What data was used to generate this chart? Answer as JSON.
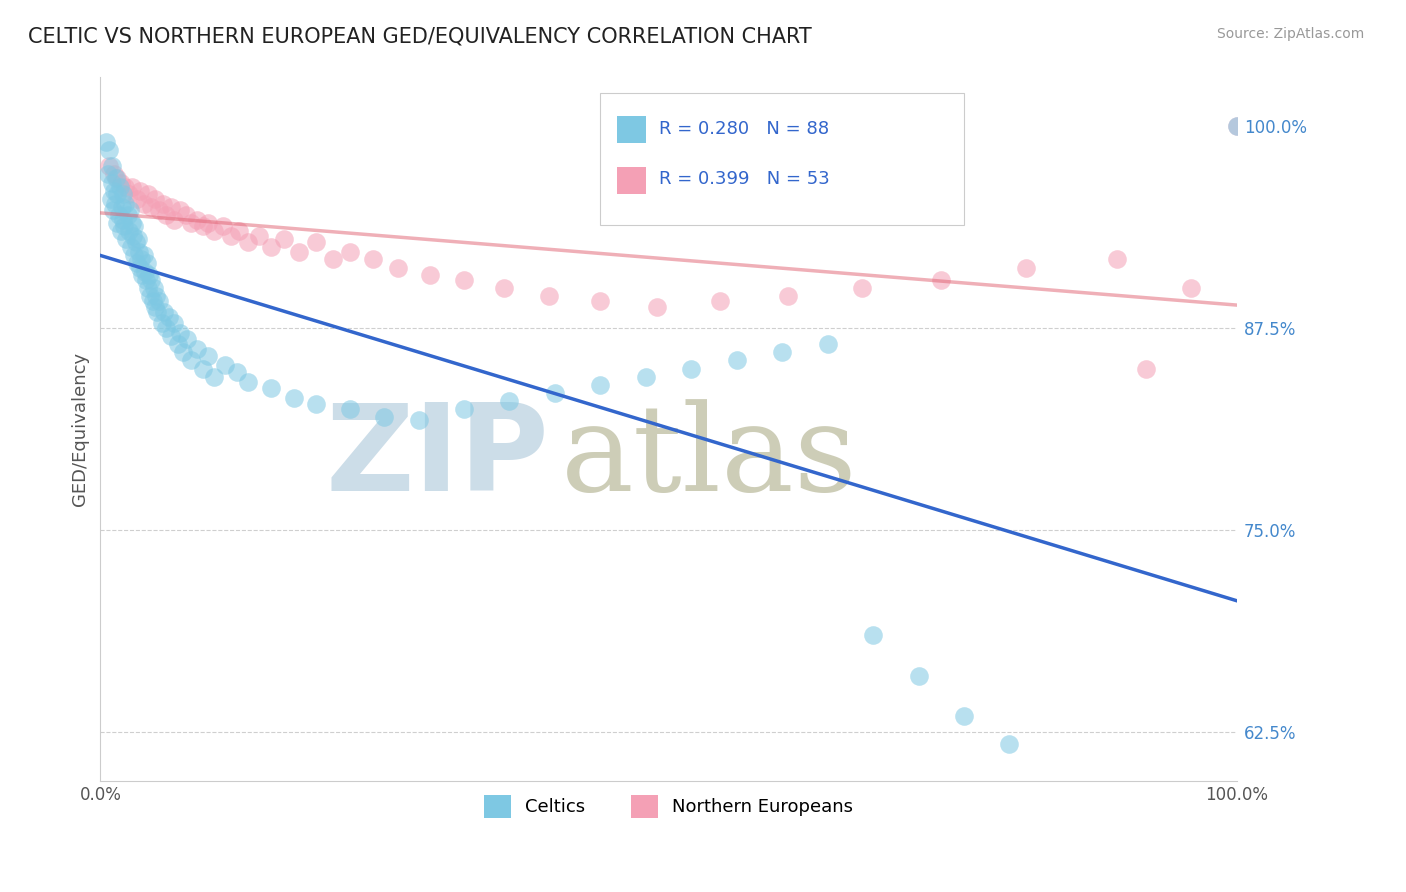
{
  "title": "CELTIC VS NORTHERN EUROPEAN GED/EQUIVALENCY CORRELATION CHART",
  "source": "Source: ZipAtlas.com",
  "ylabel": "GED/Equivalency",
  "ytick_values": [
    1.0,
    0.875,
    0.75,
    0.625
  ],
  "ytick_labels": [
    "100.0%",
    "87.5%",
    "75.0%",
    "62.5%"
  ],
  "xlim": [
    0.0,
    1.0
  ],
  "ylim": [
    0.595,
    1.03
  ],
  "celtics_R": 0.28,
  "celtics_N": 88,
  "northern_R": 0.399,
  "northern_N": 53,
  "celtic_color": "#7ec8e3",
  "celtic_edge_color": "#5aaed6",
  "northern_color": "#f4a0b5",
  "northern_edge_color": "#e888a0",
  "celtic_line_color": "#3366cc",
  "northern_line_color": "#e0607080",
  "legend_label_celtic": "Celtics",
  "legend_label_northern": "Northern Europeans",
  "zip_color": "#ccdde8",
  "atlas_color": "#c8c8b0",
  "celtics_x": [
    0.005,
    0.007,
    0.008,
    0.009,
    0.01,
    0.01,
    0.011,
    0.012,
    0.013,
    0.014,
    0.015,
    0.015,
    0.016,
    0.017,
    0.018,
    0.019,
    0.02,
    0.02,
    0.021,
    0.022,
    0.023,
    0.024,
    0.025,
    0.026,
    0.027,
    0.028,
    0.029,
    0.03,
    0.03,
    0.031,
    0.032,
    0.033,
    0.034,
    0.035,
    0.036,
    0.037,
    0.038,
    0.039,
    0.04,
    0.041,
    0.042,
    0.043,
    0.044,
    0.045,
    0.046,
    0.047,
    0.048,
    0.049,
    0.05,
    0.052,
    0.054,
    0.056,
    0.058,
    0.06,
    0.062,
    0.065,
    0.068,
    0.07,
    0.073,
    0.076,
    0.08,
    0.085,
    0.09,
    0.095,
    0.1,
    0.11,
    0.12,
    0.13,
    0.15,
    0.17,
    0.19,
    0.22,
    0.25,
    0.28,
    0.32,
    0.36,
    0.4,
    0.44,
    0.48,
    0.52,
    0.56,
    0.6,
    0.64,
    0.68,
    0.72,
    0.76,
    0.8,
    1.0
  ],
  "celtics_y": [
    0.99,
    0.97,
    0.985,
    0.955,
    0.965,
    0.975,
    0.948,
    0.96,
    0.952,
    0.968,
    0.94,
    0.958,
    0.945,
    0.962,
    0.935,
    0.95,
    0.942,
    0.958,
    0.938,
    0.952,
    0.93,
    0.945,
    0.935,
    0.948,
    0.925,
    0.94,
    0.932,
    0.92,
    0.938,
    0.928,
    0.915,
    0.93,
    0.922,
    0.912,
    0.918,
    0.908,
    0.92,
    0.91,
    0.905,
    0.915,
    0.9,
    0.908,
    0.895,
    0.905,
    0.892,
    0.9,
    0.888,
    0.895,
    0.885,
    0.892,
    0.878,
    0.885,
    0.875,
    0.882,
    0.87,
    0.878,
    0.865,
    0.872,
    0.86,
    0.868,
    0.855,
    0.862,
    0.85,
    0.858,
    0.845,
    0.852,
    0.848,
    0.842,
    0.838,
    0.832,
    0.828,
    0.825,
    0.82,
    0.818,
    0.825,
    0.83,
    0.835,
    0.84,
    0.845,
    0.85,
    0.855,
    0.86,
    0.865,
    0.685,
    0.66,
    0.635,
    0.618,
    1.0
  ],
  "northern_x": [
    0.008,
    0.012,
    0.015,
    0.018,
    0.022,
    0.025,
    0.028,
    0.032,
    0.035,
    0.038,
    0.042,
    0.045,
    0.048,
    0.052,
    0.055,
    0.058,
    0.062,
    0.065,
    0.07,
    0.075,
    0.08,
    0.085,
    0.09,
    0.095,
    0.1,
    0.108,
    0.115,
    0.122,
    0.13,
    0.14,
    0.15,
    0.162,
    0.175,
    0.19,
    0.205,
    0.22,
    0.24,
    0.262,
    0.29,
    0.32,
    0.355,
    0.395,
    0.44,
    0.49,
    0.545,
    0.605,
    0.67,
    0.74,
    0.815,
    0.895,
    0.92,
    0.96,
    1.0
  ],
  "northern_y": [
    0.975,
    0.97,
    0.968,
    0.965,
    0.962,
    0.958,
    0.962,
    0.955,
    0.96,
    0.952,
    0.958,
    0.95,
    0.955,
    0.948,
    0.952,
    0.945,
    0.95,
    0.942,
    0.948,
    0.945,
    0.94,
    0.942,
    0.938,
    0.94,
    0.935,
    0.938,
    0.932,
    0.935,
    0.928,
    0.932,
    0.925,
    0.93,
    0.922,
    0.928,
    0.918,
    0.922,
    0.918,
    0.912,
    0.908,
    0.905,
    0.9,
    0.895,
    0.892,
    0.888,
    0.892,
    0.895,
    0.9,
    0.905,
    0.912,
    0.918,
    0.85,
    0.9,
    1.0
  ]
}
